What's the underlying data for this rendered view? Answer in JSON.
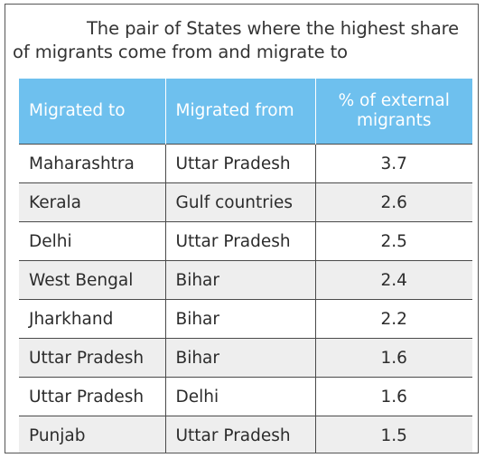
{
  "title": "The pair of States where the highest share of migrants come from and migrate to",
  "table": {
    "headers": [
      "Migrated to",
      "Migrated from",
      "% of external migrants"
    ],
    "rows": [
      [
        "Maharashtra",
        "Uttar Pradesh",
        "3.7"
      ],
      [
        "Kerala",
        "Gulf countries",
        "2.6"
      ],
      [
        "Delhi",
        "Uttar Pradesh",
        "2.5"
      ],
      [
        "West Bengal",
        "Bihar",
        "2.4"
      ],
      [
        "Jharkhand",
        "Bihar",
        "2.2"
      ],
      [
        "Uttar Pradesh",
        "Bihar",
        "1.6"
      ],
      [
        "Uttar Pradesh",
        "Delhi",
        "1.6"
      ],
      [
        "Punjab",
        "Uttar Pradesh",
        "1.5"
      ]
    ]
  },
  "colors": {
    "header_bg": "#6ec0ee",
    "header_text": "#ffffff",
    "alt_row_bg": "#eeeeee"
  }
}
